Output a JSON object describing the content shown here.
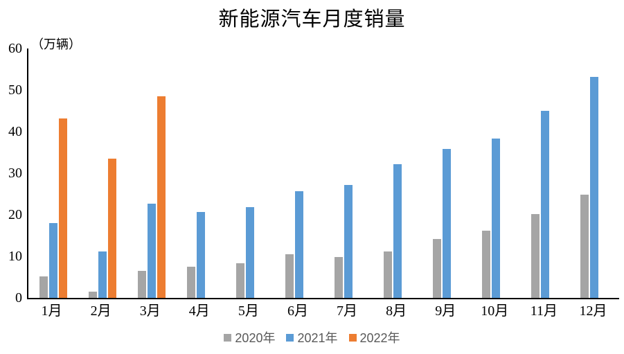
{
  "chart_data": {
    "type": "bar",
    "title": "新能源汽车月度销量",
    "unit_label": "（万辆）",
    "categories": [
      "1月",
      "2月",
      "3月",
      "4月",
      "5月",
      "6月",
      "7月",
      "8月",
      "9月",
      "10月",
      "11月",
      "12月"
    ],
    "series": [
      {
        "name": "2020年",
        "color": "#A5A5A5",
        "values": [
          5.2,
          1.5,
          6.5,
          7.5,
          8.4,
          10.5,
          9.9,
          11.1,
          14.1,
          16.1,
          20.1,
          24.8
        ]
      },
      {
        "name": "2021年",
        "color": "#5B9BD5",
        "values": [
          18.0,
          11.1,
          22.6,
          20.7,
          21.9,
          25.7,
          27.2,
          32.1,
          35.8,
          38.4,
          45.0,
          53.1
        ]
      },
      {
        "name": "2022年",
        "color": "#ED7D31",
        "values": [
          43.1,
          33.5,
          48.5,
          null,
          null,
          null,
          null,
          null,
          null,
          null,
          null,
          null
        ]
      }
    ],
    "xlabel": "",
    "ylabel": "（万辆）",
    "ylim": [
      0,
      60
    ],
    "y_ticks": [
      0,
      10,
      20,
      30,
      40,
      50,
      60
    ],
    "grid": false,
    "legend_position": "bottom"
  },
  "colors": {
    "axis": "#000000",
    "title_text": "#000000",
    "tick_text": "#000000",
    "legend_text": "#595959"
  }
}
